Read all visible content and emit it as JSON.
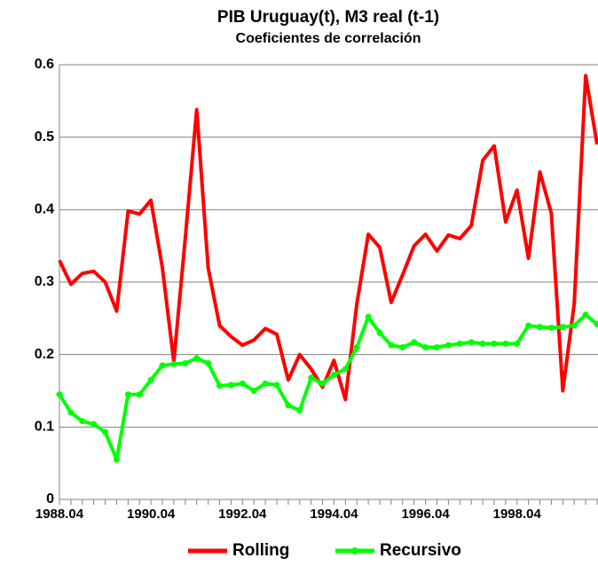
{
  "chart_data": {
    "type": "line",
    "title": "PIB Uruguay(t), M3 real (t-1)",
    "subtitle": "Coeficientes de correlación",
    "categories": [
      "1988.04",
      null,
      null,
      null,
      null,
      null,
      null,
      null,
      "1990.04",
      null,
      null,
      null,
      null,
      null,
      null,
      null,
      "1992.04",
      null,
      null,
      null,
      null,
      null,
      null,
      null,
      "1994.04",
      null,
      null,
      null,
      null,
      null,
      null,
      null,
      "1996.04",
      null,
      null,
      null,
      null,
      null,
      null,
      null,
      "1998.04",
      null,
      null,
      null,
      null,
      null,
      null,
      null
    ],
    "series": [
      {
        "name": "Rolling",
        "color": "#ff0000",
        "marker": false,
        "values": [
          0.33,
          0.297,
          0.312,
          0.315,
          0.3,
          0.26,
          0.398,
          0.394,
          0.413,
          0.32,
          0.19,
          0.36,
          0.538,
          0.32,
          0.24,
          0.225,
          0.213,
          0.22,
          0.236,
          0.228,
          0.165,
          0.2,
          0.18,
          0.155,
          0.192,
          0.138,
          0.27,
          0.366,
          0.348,
          0.272,
          0.31,
          0.35,
          0.366,
          0.343,
          0.365,
          0.36,
          0.378,
          0.468,
          0.488,
          0.383,
          0.427,
          0.333,
          0.452,
          0.395,
          0.15,
          0.27,
          0.585,
          0.49
        ]
      },
      {
        "name": "Recursivo",
        "color": "#00ff00",
        "marker": true,
        "values": [
          0.145,
          0.12,
          0.108,
          0.104,
          0.093,
          0.055,
          0.145,
          0.145,
          0.165,
          0.185,
          0.187,
          0.188,
          0.195,
          0.188,
          0.157,
          0.158,
          0.16,
          0.15,
          0.16,
          0.158,
          0.13,
          0.123,
          0.168,
          0.16,
          0.172,
          0.18,
          0.21,
          0.252,
          0.23,
          0.213,
          0.21,
          0.217,
          0.21,
          0.21,
          0.213,
          0.215,
          0.217,
          0.215,
          0.215,
          0.215,
          0.215,
          0.24,
          0.238,
          0.237,
          0.238,
          0.24,
          0.255,
          0.242
        ]
      }
    ],
    "ylim": [
      0,
      0.6
    ],
    "yticks": [
      0,
      0.1,
      0.2,
      0.3,
      0.4,
      0.5,
      0.6
    ],
    "grid": true,
    "legend": "bottom"
  }
}
